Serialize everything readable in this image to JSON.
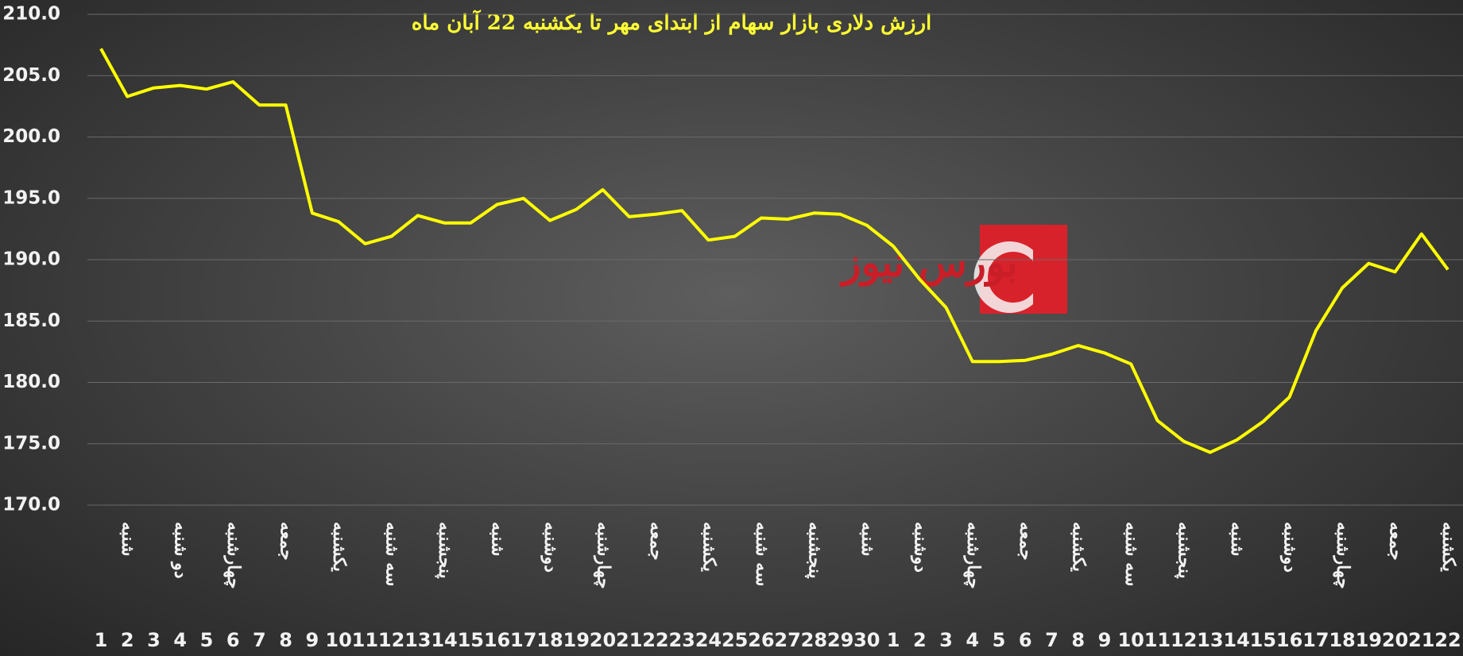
{
  "chart_data": {
    "type": "line",
    "title": "ارزش دلاری بازار سهام از ابتدای مهر تا یکشنبه 22 آبان ماه",
    "logo_text": "بورس نیوز",
    "categories": [
      "1",
      "2",
      "3",
      "4",
      "5",
      "6",
      "7",
      "8",
      "9",
      "10",
      "11",
      "12",
      "13",
      "14",
      "15",
      "16",
      "17",
      "18",
      "19",
      "20",
      "21",
      "22",
      "23",
      "24",
      "25",
      "26",
      "27",
      "28",
      "29",
      "30",
      "1",
      "2",
      "3",
      "4",
      "5",
      "6",
      "7",
      "8",
      "9",
      "10",
      "11",
      "12",
      "13",
      "14",
      "15",
      "16",
      "17",
      "18",
      "19",
      "20",
      "21",
      "22"
    ],
    "weekdays": [
      null,
      "شنبه",
      null,
      "دو شنبه",
      null,
      "چهارشنبه",
      null,
      "جمعه",
      null,
      "یکشنبه",
      null,
      "سه شنبه",
      null,
      "پنجشنبه",
      null,
      "شنبه",
      null,
      "دوشنبه",
      null,
      "چهارشنبه",
      null,
      "جمعه",
      null,
      "یکشنبه",
      null,
      "سه شنبه",
      null,
      "پنجشنبه",
      null,
      "شنبه",
      null,
      "دوشنبه",
      null,
      "چهارشنبه",
      null,
      "جمعه",
      null,
      "یکشنبه",
      null,
      "سه شنبه",
      null,
      "پنجشنبه",
      null,
      "شنبه",
      null,
      "دوشنبه",
      null,
      "چهارشنبه",
      null,
      "جمعه",
      null,
      "یکشنبه"
    ],
    "values": [
      207.2,
      203.3,
      204.0,
      204.2,
      203.9,
      204.5,
      202.6,
      202.6,
      193.8,
      193.1,
      191.3,
      191.9,
      193.6,
      193.0,
      193.0,
      194.5,
      195.0,
      193.2,
      194.1,
      195.7,
      193.5,
      193.7,
      194.0,
      191.6,
      191.9,
      193.4,
      193.3,
      193.8,
      193.7,
      192.8,
      191.1,
      188.4,
      186.1,
      181.7,
      181.7,
      181.8,
      182.3,
      183.0,
      182.4,
      181.5,
      176.9,
      175.2,
      174.3,
      175.3,
      176.8,
      178.8,
      184.2,
      187.7,
      189.7,
      189.0,
      192.1,
      189.2
    ],
    "color": "#ffff00",
    "ylim": [
      170,
      210
    ],
    "yticks": [
      {
        "value": 170,
        "label": "170.0"
      },
      {
        "value": 175,
        "label": "175.0"
      },
      {
        "value": 180,
        "label": "180.0"
      },
      {
        "value": 185,
        "label": "185.0"
      },
      {
        "value": 190,
        "label": "190.0"
      },
      {
        "value": 195,
        "label": "195.0"
      },
      {
        "value": 200,
        "label": "200.0"
      },
      {
        "value": 205,
        "label": "205.0"
      },
      {
        "value": 210,
        "label": "210.0"
      }
    ],
    "grid": true
  }
}
